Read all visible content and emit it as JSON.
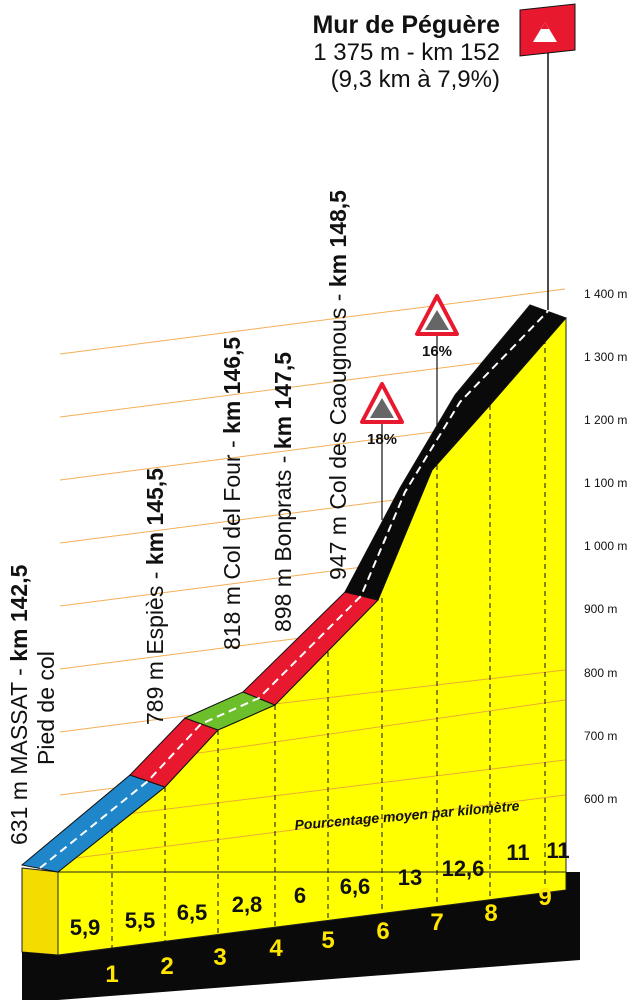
{
  "summit": {
    "name": "Mur de Péguère",
    "altitude_km": "1 375 m - km 152",
    "climb_stats": "(9,3 km à 7,9%)"
  },
  "altitude_axis": {
    "labels": [
      "1 400 m",
      "1 300 m",
      "1 200 m",
      "1 100 m",
      "1 000 m",
      "900 m",
      "800 m",
      "700 m",
      "600 m"
    ],
    "values": [
      1400,
      1300,
      1200,
      1100,
      1000,
      900,
      800,
      700,
      600
    ]
  },
  "waypoints": [
    {
      "name": "631 m MASSAT - ",
      "km": "km 142,5",
      "sub": "Pied de col"
    },
    {
      "name": "789 m Espiès - ",
      "km": "km 145,5"
    },
    {
      "name": "818 m Col del Four - ",
      "km": "km 146,5"
    },
    {
      "name": "898 m Bonprats - ",
      "km": "km 147,5"
    },
    {
      "name": "947 m Col des Caougnous - ",
      "km": "km 148,5"
    }
  ],
  "km_markers": [
    "1",
    "2",
    "3",
    "4",
    "5",
    "6",
    "7",
    "8",
    "9"
  ],
  "gradients": [
    "5,9",
    "5,5",
    "6,5",
    "2,8",
    "6",
    "6,6",
    "13",
    "12,6",
    "11",
    "11"
  ],
  "gradient_note": "Pourcentage moyen par kilomètre",
  "steep_signs": [
    {
      "icon": "steep-mountain-icon",
      "label": "18%"
    },
    {
      "icon": "steep-mountain-icon",
      "label": "16%"
    }
  ],
  "colors": {
    "terrain": "#ffff00",
    "base": "#0a0a0a",
    "blue": "#1f86c9",
    "red": "#e8182e",
    "green": "#6cbf2a",
    "black": "#0a0a0a",
    "flag": "#e8182e"
  }
}
